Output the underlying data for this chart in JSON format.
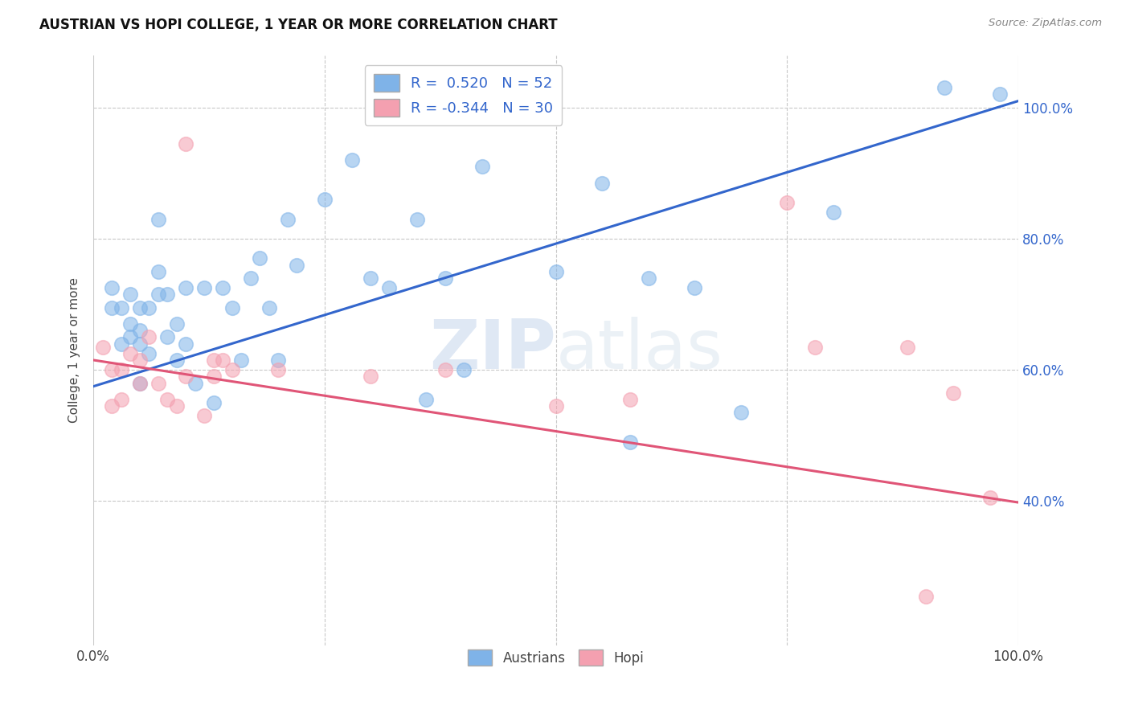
{
  "title": "AUSTRIAN VS HOPI COLLEGE, 1 YEAR OR MORE CORRELATION CHART",
  "source": "Source: ZipAtlas.com",
  "ylabel": "College, 1 year or more",
  "xlim": [
    0.0,
    1.0
  ],
  "ylim": [
    0.18,
    1.08
  ],
  "watermark_zip": "ZIP",
  "watermark_atlas": "atlas",
  "legend_r_austrians": "0.520",
  "legend_n_austrians": "52",
  "legend_r_hopi": "-0.344",
  "legend_n_hopi": "30",
  "austrians_color": "#7fb3e8",
  "hopi_color": "#f4a0b0",
  "austrians_line_color": "#3366cc",
  "hopi_line_color": "#e05577",
  "background_color": "#ffffff",
  "grid_color": "#c8c8c8",
  "austrians_x": [
    0.02,
    0.02,
    0.03,
    0.03,
    0.04,
    0.04,
    0.04,
    0.05,
    0.05,
    0.05,
    0.05,
    0.06,
    0.06,
    0.07,
    0.07,
    0.07,
    0.08,
    0.08,
    0.09,
    0.09,
    0.1,
    0.1,
    0.11,
    0.12,
    0.13,
    0.14,
    0.15,
    0.16,
    0.17,
    0.18,
    0.19,
    0.2,
    0.21,
    0.22,
    0.25,
    0.28,
    0.3,
    0.32,
    0.35,
    0.36,
    0.38,
    0.4,
    0.42,
    0.5,
    0.55,
    0.58,
    0.6,
    0.65,
    0.7,
    0.8,
    0.92,
    0.98
  ],
  "austrians_y": [
    0.695,
    0.725,
    0.64,
    0.695,
    0.65,
    0.67,
    0.715,
    0.58,
    0.64,
    0.66,
    0.695,
    0.625,
    0.695,
    0.83,
    0.715,
    0.75,
    0.65,
    0.715,
    0.615,
    0.67,
    0.64,
    0.725,
    0.58,
    0.725,
    0.55,
    0.725,
    0.695,
    0.615,
    0.74,
    0.77,
    0.695,
    0.615,
    0.83,
    0.76,
    0.86,
    0.92,
    0.74,
    0.725,
    0.83,
    0.555,
    0.74,
    0.6,
    0.91,
    0.75,
    0.885,
    0.49,
    0.74,
    0.725,
    0.535,
    0.84,
    1.03,
    1.02
  ],
  "hopi_x": [
    0.01,
    0.02,
    0.02,
    0.03,
    0.03,
    0.04,
    0.05,
    0.05,
    0.06,
    0.07,
    0.08,
    0.09,
    0.1,
    0.1,
    0.12,
    0.13,
    0.13,
    0.14,
    0.15,
    0.2,
    0.3,
    0.38,
    0.5,
    0.58,
    0.75,
    0.78,
    0.88,
    0.9,
    0.93,
    0.97
  ],
  "hopi_y": [
    0.635,
    0.545,
    0.6,
    0.555,
    0.6,
    0.625,
    0.58,
    0.615,
    0.65,
    0.58,
    0.555,
    0.545,
    0.59,
    0.945,
    0.53,
    0.59,
    0.615,
    0.615,
    0.6,
    0.6,
    0.59,
    0.6,
    0.545,
    0.555,
    0.855,
    0.635,
    0.635,
    0.255,
    0.565,
    0.405
  ],
  "austrians_trendline_x": [
    0.0,
    1.0
  ],
  "austrians_trendline_y": [
    0.575,
    1.01
  ],
  "hopi_trendline_x": [
    0.0,
    1.0
  ],
  "hopi_trendline_y": [
    0.615,
    0.398
  ],
  "yticks": [
    0.4,
    0.6,
    0.8,
    1.0
  ],
  "ytick_labels": [
    "40.0%",
    "60.0%",
    "80.0%",
    "100.0%"
  ],
  "xticks": [
    0.0,
    0.25,
    0.5,
    0.75,
    1.0
  ],
  "xtick_labels": [
    "0.0%",
    "",
    "",
    "",
    "100.0%"
  ]
}
